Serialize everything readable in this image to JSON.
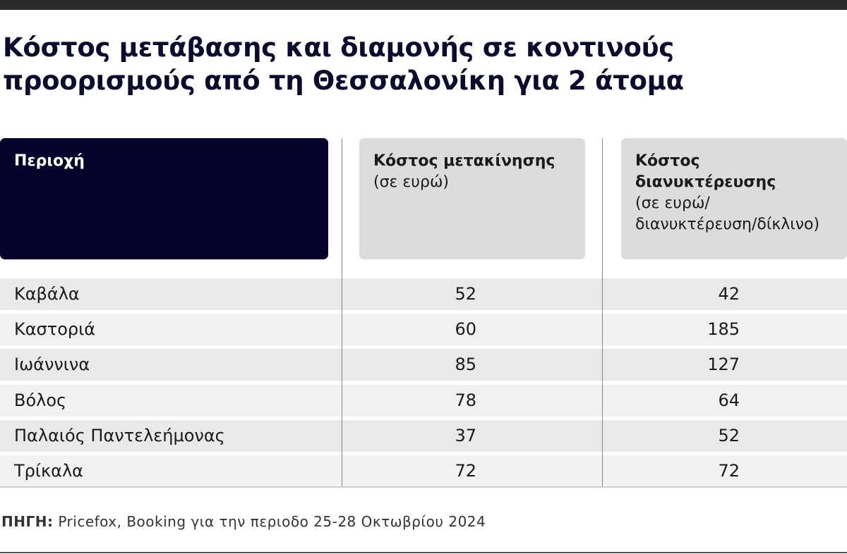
{
  "header": {
    "title_lines": [
      "Κόστος μετάβασης και διαμονής σε κοντινούς",
      "προορισμούς από τη Θεσσαλονίκη για 2 άτομα"
    ]
  },
  "table": {
    "columns": [
      {
        "title": "Περιοχή"
      },
      {
        "title": "Κόστος μετακίνησης",
        "subtitle": "(σε ευρώ)"
      },
      {
        "title": "Κόστος διανυκτέρευσης",
        "subtitle": "(σε ευρώ/ διανυκτέρευση/δίκλινο)"
      }
    ],
    "rows": [
      [
        "Καβάλα",
        52,
        42
      ],
      [
        "Καστοριά",
        60,
        185
      ],
      [
        "Ιωάννινα",
        85,
        127
      ],
      [
        "Βόλος",
        78,
        64
      ],
      [
        "Παλαιός Παντελεήμονας",
        37,
        52
      ],
      [
        "Τρίκαλα",
        72,
        72
      ]
    ]
  },
  "source": {
    "label": "ΠΗΓΗ:",
    "text": "Pricefox, Booking για την περιοδο 25-28 Οκτωβρίου 2024"
  }
}
